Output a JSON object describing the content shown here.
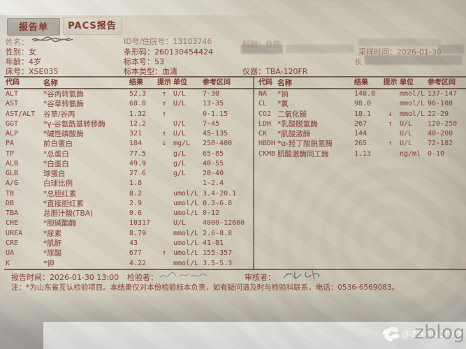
{
  "tabs": [
    {
      "label": "报告单",
      "active": true
    },
    {
      "label": "PACS报告",
      "active": false
    }
  ],
  "patient": {
    "name_label": "姓名：",
    "id_line": "ID号/住院号：13103746",
    "dept_line": "科别：住院",
    "sex": "性别：女",
    "barcode": "条形码：260130454424",
    "sampling_time": "采样时间：2026-01-30",
    "age": "年龄：4岁",
    "sample_no": "标本号：53",
    "redacted_prefix": "长",
    "bed": "床号：XSE035",
    "sample_type": "标本类型：血清",
    "instrument": "仪器：TBA-120FR"
  },
  "report": {
    "headers": [
      "代码",
      "名称",
      "结果",
      "提示",
      "单位",
      "参考区间"
    ],
    "left_rows": [
      [
        "ALT",
        "*谷丙转氨酶",
        "52.3",
        "↑",
        "U/L",
        "7-30"
      ],
      [
        "AST",
        "*谷草转氨酶",
        "68.8",
        "↑",
        "U/L",
        "13-35"
      ],
      [
        "AST/ALT",
        "谷草/谷丙",
        "1.32",
        "↑",
        "",
        "0-1.15"
      ],
      [
        "GGT",
        "*γ-谷氨酰基转移酶",
        "12.2",
        "",
        "U/L",
        "7-45"
      ],
      [
        "ALP",
        "*碱性磷酸酶",
        "321",
        "↑",
        "U/L",
        "45-135"
      ],
      [
        "PA",
        "前白蛋白",
        "184",
        "↓",
        "mg/L",
        "250-400"
      ],
      [
        "TP",
        "*总蛋白",
        "77.5",
        "",
        "g/L",
        "65-85"
      ],
      [
        "ALB",
        "*白蛋白",
        "49.9",
        "",
        "g/L",
        "40-55"
      ],
      [
        "GLB",
        "球蛋白",
        "27.6",
        "",
        "g/L",
        "20-40"
      ],
      [
        "A/G",
        "白球比例",
        "1.8",
        "",
        "",
        "1-2.4"
      ],
      [
        "TB",
        "*总胆红素",
        "8.2",
        "",
        "umol/L",
        "3.4-20.1"
      ],
      [
        "DB",
        "*直接胆红素",
        "2.9",
        "",
        "umol/L",
        "0.3-6.8"
      ],
      [
        "TBA",
        "总胆汁酸(TBA)",
        "0.6",
        "",
        "umol/L",
        "0-12"
      ],
      [
        "CHE",
        "*胆碱酯酶",
        "10317",
        "",
        "U/L",
        "4000-12600"
      ],
      [
        "UREA",
        "*尿素",
        "8.79",
        "",
        "mmol/L",
        "2.6-8.8"
      ],
      [
        "CRE",
        "*肌酐",
        "43",
        "",
        "umol/L",
        "41-81"
      ],
      [
        "UA",
        "*尿酸",
        "677",
        "↑",
        "umol/L",
        "155-357"
      ],
      [
        "K",
        "*钾",
        "4.22",
        "",
        "mmol/L",
        "3.5-5.3"
      ]
    ],
    "right_rows": [
      [
        "NA",
        "*钠",
        "140.0",
        "",
        "mmol/L",
        "137-147"
      ],
      [
        "CL",
        "*氯",
        "98.0",
        "",
        "mmol/L",
        "96-108"
      ],
      [
        "CO2",
        "二氧化碳",
        "18.1",
        "↓",
        "mmol/L",
        "22-29"
      ],
      [
        "LDH",
        "*乳酸脱氢酶",
        "267",
        "↑",
        "U/L",
        "120-250"
      ],
      [
        "CK",
        "*肌酸激酶",
        "144",
        "",
        "U/L",
        "40-200"
      ],
      [
        "HBDH",
        "*α-羟丁酸脱氢酶",
        "265",
        "↑",
        "U/L",
        "72-182"
      ],
      [
        "CKMB",
        "肌酸激酶同工酶",
        "1.13",
        "",
        "ng/ml",
        "0-10"
      ]
    ]
  },
  "footer": {
    "report_time": "报告时间：2026-01-30 13:00",
    "examiner_label": "检验者：",
    "reviewer_label": "审核者：",
    "note": "注：*为山东省互认检验项目。本结果仅对本份检验标本负责，如有疑问请及时与检验科联系，电话：0536-6569083。"
  },
  "watermark": {
    "handle": "@ZHONGFRX",
    "brand": "zblog"
  },
  "colors": {
    "ink": "#8a4a3c",
    "rule": "#60463a",
    "paper": "#ccc6b4",
    "tab_active_bg": "#afa89e",
    "tab_idle_bg": "#d7d1c3",
    "panel": "#d9d9d7"
  }
}
